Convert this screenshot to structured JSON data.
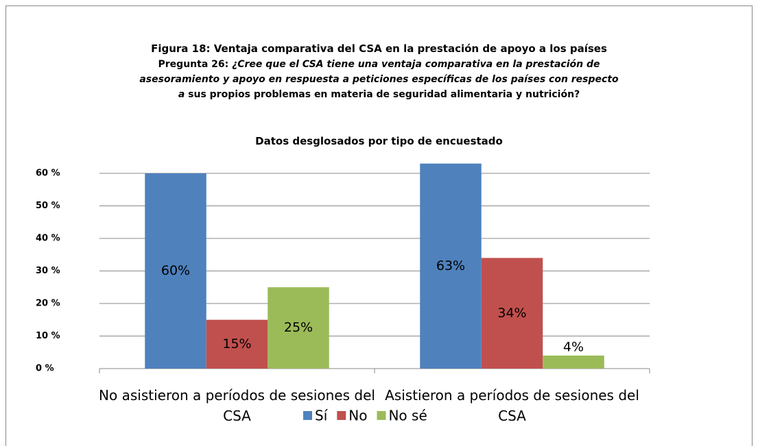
{
  "chart_data": {
    "type": "bar",
    "title": "Figura 18: Ventaja comparativa del CSA en la prestación de apoyo a los países",
    "question_label": "Pregunta 26:",
    "question_lines": [
      "¿Cree que el CSA tiene una ventaja comparativa en la prestación de",
      "asesoramiento y apoyo en respuesta a peticiones específicas de los países con respecto"
    ],
    "question_last_italic": "a",
    "question_last_rest": "sus propios problemas en materia de seguridad alimentaria y nutrición?",
    "chart_title": "Datos desglosados por tipo de encuestado",
    "categories": [
      "No asistieron a períodos de sesiones del CSA",
      "Asistieron a períodos de sesiones del CSA"
    ],
    "series": [
      {
        "name": "Sí",
        "color": "#4f81bd",
        "values": [
          60,
          63
        ],
        "value_labels": [
          "60%",
          "63%"
        ]
      },
      {
        "name": "No",
        "color": "#c0504d",
        "values": [
          15,
          34
        ],
        "value_labels": [
          "15%",
          "34%"
        ]
      },
      {
        "name": "No sé",
        "color": "#9bbb59",
        "values": [
          25,
          4
        ],
        "value_labels": [
          "25%",
          "4%"
        ]
      }
    ],
    "ylim": [
      0,
      60
    ],
    "yticks": [
      {
        "value": 0,
        "label": "0 %"
      },
      {
        "value": 10,
        "label": "10 %"
      },
      {
        "value": 20,
        "label": "20 %"
      },
      {
        "value": 30,
        "label": "30 %"
      },
      {
        "value": 40,
        "label": "40 %"
      },
      {
        "value": 50,
        "label": "50 %"
      },
      {
        "value": 60,
        "label": "60 %"
      }
    ],
    "grid": true,
    "legend": "bottom"
  }
}
